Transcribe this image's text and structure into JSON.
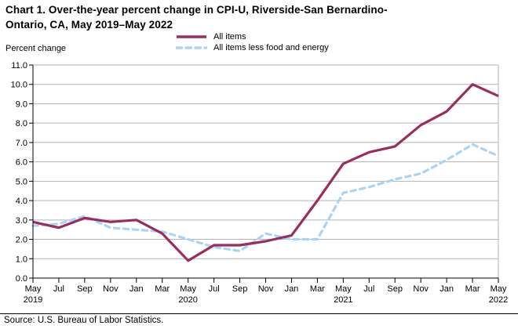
{
  "title_lines": [
    "Chart 1. Over-the-year percent change in CPI-U, Riverside-San Bernardino-",
    "Ontario, CA, May 2019–May 2022"
  ],
  "source": "Source: U.S. Bureau of Labor Statistics.",
  "colors": {
    "all_items": "#9a2d60",
    "core": "#a9d4f5",
    "grid": "#b3b3b3",
    "axis": "#000000",
    "text": "#000000"
  },
  "chart_data": {
    "type": "line",
    "title": "Chart 1. Over-the-year percent change in CPI-U, Riverside-San Bernardino-Ontario, CA, May 2019–May 2022",
    "ylabel": "Percent change",
    "xlabel": "",
    "ylim": [
      0.0,
      11.0
    ],
    "y_tick_step": 1.0,
    "y_tick_decimals": 1,
    "grid": true,
    "legend_position": "top-center",
    "categories": [
      "May",
      "Jul",
      "Sep",
      "Nov",
      "Jan",
      "Mar",
      "May",
      "Jul",
      "Sep",
      "Nov",
      "Jan",
      "Mar",
      "May",
      "Jul",
      "Sep",
      "Nov",
      "Jan",
      "Mar",
      "May"
    ],
    "year_labels": [
      {
        "index": 0,
        "year": "2019"
      },
      {
        "index": 6,
        "year": "2020"
      },
      {
        "index": 12,
        "year": "2021"
      },
      {
        "index": 18,
        "year": "2022"
      }
    ],
    "series": [
      {
        "name": "All items",
        "style": "solid",
        "color": "#9a2d60",
        "values": [
          2.9,
          2.6,
          3.1,
          2.9,
          3.0,
          2.3,
          0.9,
          1.7,
          1.7,
          1.9,
          2.2,
          4.0,
          5.9,
          6.5,
          6.8,
          7.9,
          8.6,
          10.0,
          9.4
        ]
      },
      {
        "name": "All items less food and energy",
        "style": "dashed",
        "color": "#a9d4f5",
        "values": [
          2.7,
          2.8,
          3.2,
          2.6,
          2.5,
          2.4,
          2.0,
          1.6,
          1.4,
          2.3,
          2.0,
          2.0,
          4.4,
          4.7,
          5.1,
          5.4,
          6.1,
          6.9,
          6.3
        ]
      }
    ]
  }
}
